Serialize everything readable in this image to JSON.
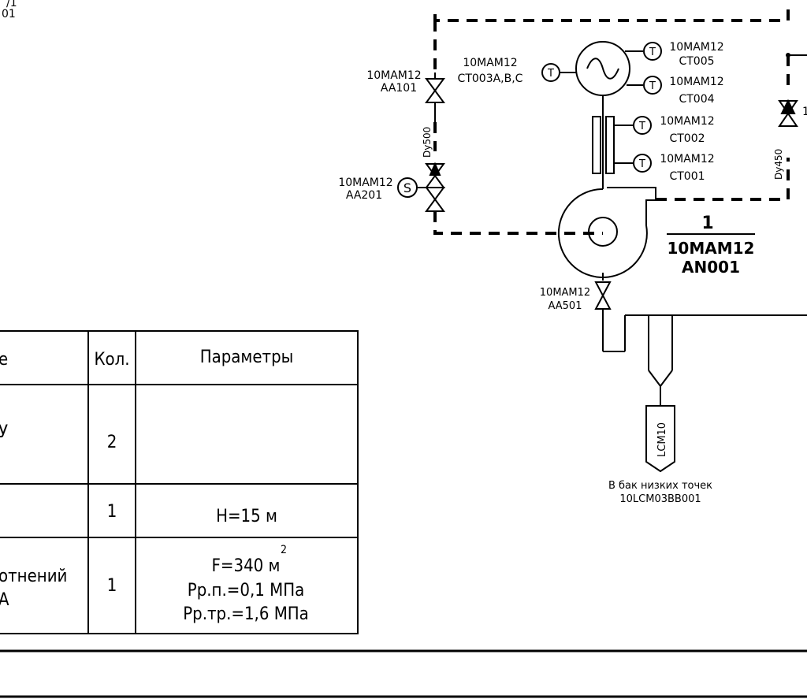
{
  "top_left_fragments": {
    "a": "/1",
    "b": "01"
  },
  "valves": {
    "aa101": {
      "l1": "10MAM12",
      "l2": "AA101"
    },
    "aa201": {
      "l1": "10MAM12",
      "l2": "AA201"
    },
    "aa501": {
      "l1": "10MAM12",
      "l2": "AA501"
    }
  },
  "sensors": {
    "ct003": {
      "l1": "10MAM12",
      "l2": "CT003A,B,C"
    },
    "ct005": {
      "l1": "10MAM12",
      "l2": "CT005"
    },
    "ct004": {
      "l1": "10MAM12",
      "l2": "CT004"
    },
    "ct002": {
      "l1": "10MAM12",
      "l2": "CT002"
    },
    "ct001": {
      "l1": "10MAM12",
      "l2": "CT001"
    }
  },
  "symbols": {
    "temp": "T",
    "solenoid": "S"
  },
  "pipes": {
    "dy500": "Dy500",
    "dy450": "Dy450",
    "right_label": "1"
  },
  "unit": {
    "num": "1",
    "l1": "10MAM12",
    "l2": "AN001"
  },
  "drain": {
    "code": "LCM10",
    "dest1": "В бак низких точек",
    "dest2": "10LCM03BB001"
  },
  "table": {
    "headers": [
      "е",
      "Кол.",
      "Параметры"
    ],
    "rows": [
      {
        "name": "У",
        "qty": "2",
        "params": []
      },
      {
        "name": "",
        "qty": "1",
        "params": [
          "H=15 м"
        ]
      },
      {
        "name": "отнений\nА",
        "qty": "1",
        "params": [
          "F=340 м²",
          "Pр.п.=0,1 МПа",
          "Pр.тр.=1,6 МПа"
        ]
      }
    ],
    "row1_name": "У",
    "row3_name_l1": "отнений",
    "row3_name_l2": "А",
    "row2_param": "H=15 м",
    "row3_param_l1": "F=340 м",
    "row3_param_sup": "2",
    "row3_param_l2": "Pр.п.=0,1 МПа",
    "row3_param_l3": "Pр.тр.=1,6 МПа"
  }
}
